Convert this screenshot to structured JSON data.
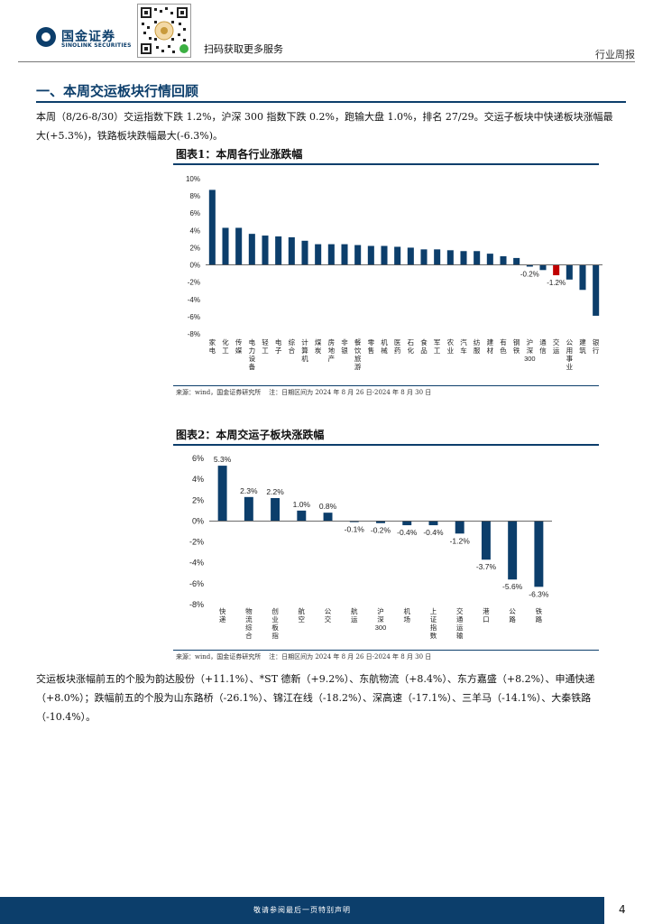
{
  "header": {
    "logo_cn": "国金证券",
    "logo_en": "SINOLINK SECURITIES",
    "qr_caption": "扫码获取更多服务",
    "doc_type": "行业周报"
  },
  "section": {
    "title": "一、本周交运板块行情回顾",
    "paragraph1": "本周（8/26-8/30）交运指数下跌 1.2%，沪深 300 指数下跌 0.2%，跑输大盘 1.0%，排名 27/29。交运子板块中快递板块涨幅最大(+5.3%)，铁路板块跌幅最大(-6.3%)。",
    "paragraph2": "交运板块涨幅前五的个股为韵达股份（+11.1%）、*ST 德新（+9.2%）、东航物流（+8.4%）、东方嘉盛（+8.2%）、申通快递（+8.0%）；跌幅前五的个股为山东路桥（-26.1%）、锦江在线（-18.2%）、深高速（-17.1%）、三羊马（-14.1%）、大秦铁路（-10.4%）。"
  },
  "figure1": {
    "title": "图表1：本周各行业涨跌幅",
    "source": "来源：wind，国金证券研究所    注：日期区间为 2024 年 8 月 26 日-2024 年 8 月 30 日"
  },
  "figure2": {
    "title": "图表2：本周交运子板块涨跌幅",
    "source": "来源：wind，国金证券研究所    注：日期区间为 2024 年 8 月 26 日-2024 年 8 月 30 日"
  },
  "footer": {
    "disclaimer": "敬请参阅最后一页特别声明",
    "page_number": "4"
  },
  "colors": {
    "brand": "#0c3e6b",
    "bar_default": "#0c3e6b",
    "bar_highlight": "#c00000"
  },
  "chart_data": [
    {
      "type": "bar",
      "title": "图表1：本周各行业涨跌幅",
      "categories": [
        "家电",
        "化工",
        "传媒",
        "电力设备",
        "轻工",
        "电子",
        "综合",
        "计算机",
        "煤炭",
        "房地产",
        "非银",
        "餐饮旅游",
        "零售",
        "机械",
        "医药",
        "石化",
        "食品",
        "军工",
        "农业",
        "汽车",
        "纺服",
        "建材",
        "有色",
        "钢铁",
        "沪深300",
        "通信",
        "交运",
        "公用事业",
        "建筑",
        "银行"
      ],
      "values": [
        8.7,
        4.3,
        4.3,
        3.6,
        3.4,
        3.3,
        3.2,
        2.8,
        2.4,
        2.4,
        2.4,
        2.3,
        2.2,
        2.2,
        2.1,
        2.0,
        1.8,
        1.8,
        1.7,
        1.6,
        1.6,
        1.3,
        1.0,
        0.8,
        -0.2,
        -0.6,
        -1.2,
        -1.7,
        -2.9,
        -5.9
      ],
      "highlight": [
        false,
        false,
        false,
        false,
        false,
        false,
        false,
        false,
        false,
        false,
        false,
        false,
        false,
        false,
        false,
        false,
        false,
        false,
        false,
        false,
        false,
        false,
        false,
        false,
        false,
        false,
        true,
        false,
        false,
        false
      ],
      "data_labels": [
        null,
        null,
        null,
        null,
        null,
        null,
        null,
        null,
        null,
        null,
        null,
        null,
        null,
        null,
        null,
        null,
        null,
        null,
        null,
        null,
        null,
        null,
        null,
        null,
        "-0.2%",
        null,
        "-1.2%",
        null,
        null,
        null
      ],
      "yticks": [
        "10%",
        "8%",
        "6%",
        "4%",
        "2%",
        "0%",
        "-2%",
        "-4%",
        "-6%",
        "-8%"
      ],
      "ylim": [
        -8,
        10
      ],
      "xlabel": "",
      "ylabel": ""
    },
    {
      "type": "bar",
      "title": "图表2：本周交运子板块涨跌幅",
      "categories": [
        "快递",
        "物流综合",
        "创业板指",
        "航空",
        "公交",
        "航运",
        "沪深300",
        "机场",
        "上证指数",
        "交通运输",
        "港口",
        "公路",
        "铁路"
      ],
      "values": [
        5.3,
        2.3,
        2.2,
        1.0,
        0.8,
        -0.1,
        -0.2,
        -0.4,
        -0.4,
        -1.2,
        -3.7,
        -5.6,
        -6.3
      ],
      "data_labels": [
        "5.3%",
        "2.3%",
        "2.2%",
        "1.0%",
        "0.8%",
        "-0.1%",
        "-0.2%",
        "-0.4%",
        "-0.4%",
        "-1.2%",
        "-3.7%",
        "-5.6%",
        "-6.3%"
      ],
      "yticks": [
        "6%",
        "4%",
        "2%",
        "0%",
        "-2%",
        "-4%",
        "-6%",
        "-8%"
      ],
      "ylim": [
        -8,
        6
      ],
      "xlabel": "",
      "ylabel": ""
    }
  ]
}
